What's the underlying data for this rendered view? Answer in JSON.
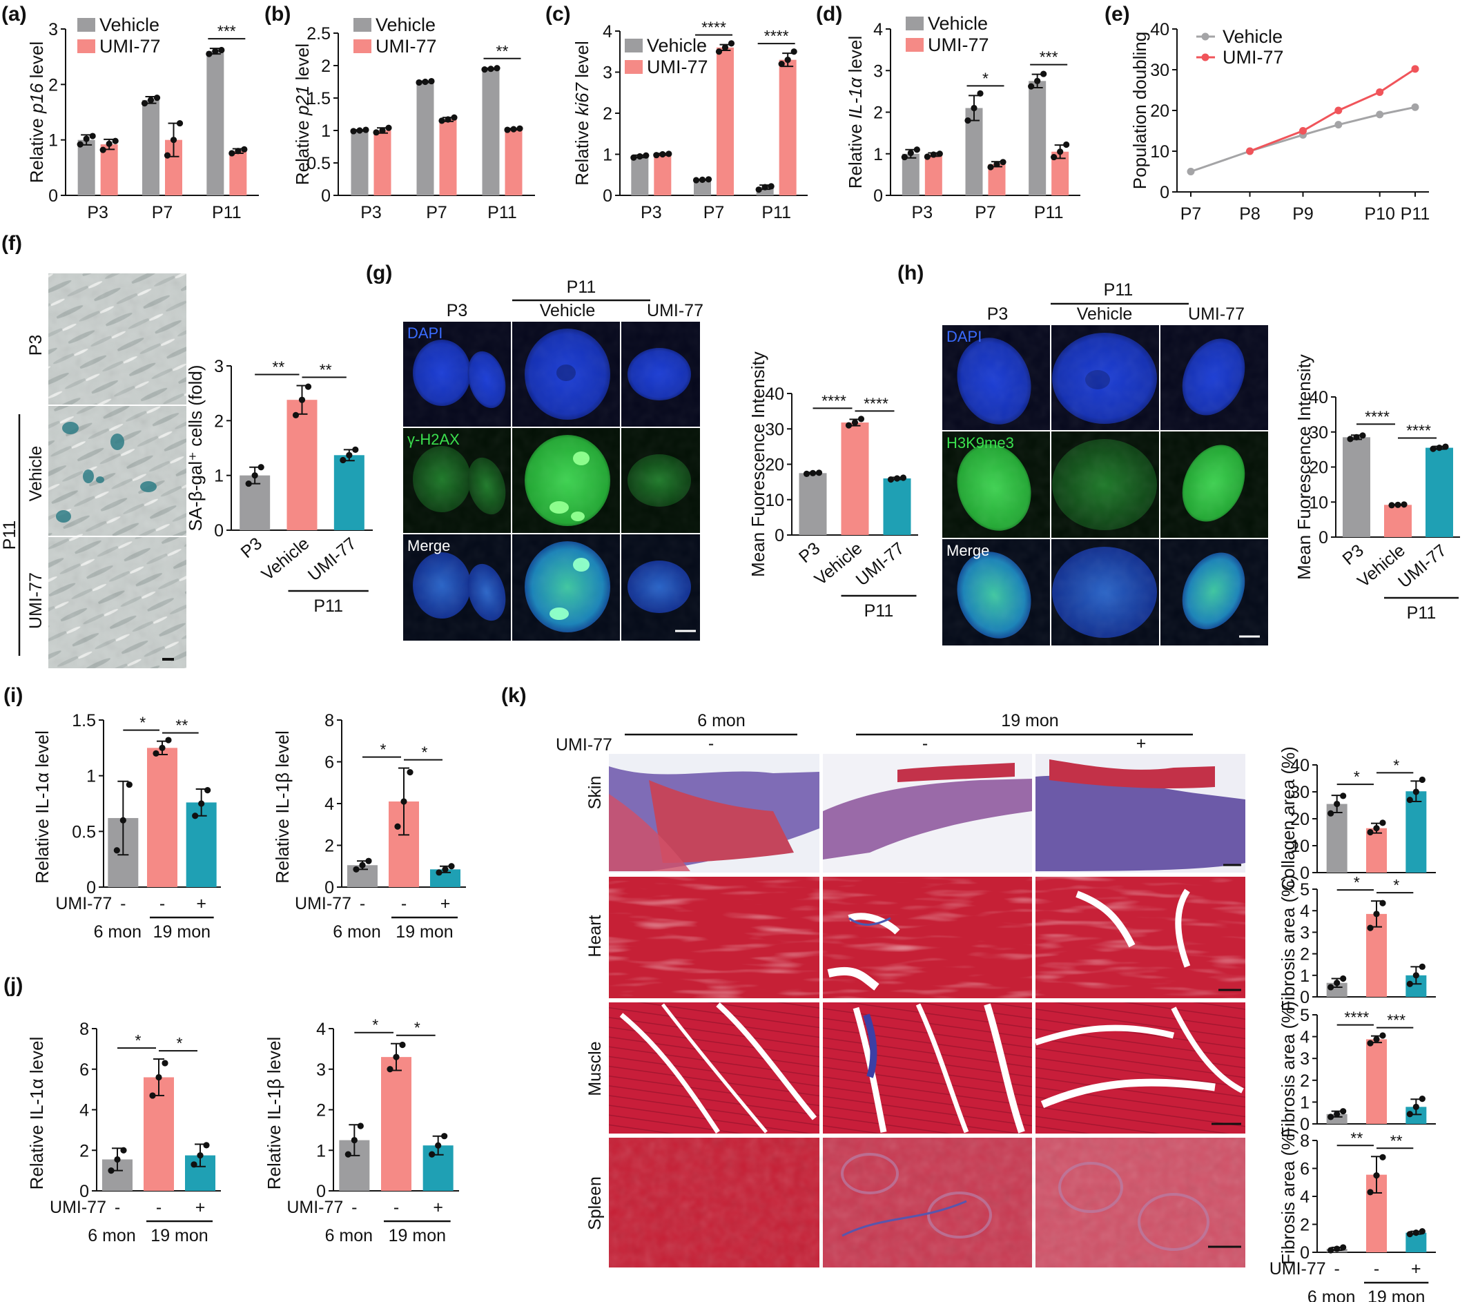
{
  "colors": {
    "vehicle": "#9d9d9f",
    "umi": "#f58a86",
    "teal": "#1fa0b4",
    "grey": "#9d9d9f",
    "dapi": "#1433b8",
    "green": "#2ed043",
    "merge": "#0fa0a0",
    "line_umi": "#f0545a",
    "line_veh": "#a4a4a6"
  },
  "legend": {
    "vehicle": "Vehicle",
    "umi": "UMI-77"
  },
  "panels": {
    "a": "(a)",
    "b": "(b)",
    "c": "(c)",
    "d": "(d)",
    "e": "(e)",
    "f": "(f)",
    "g": "(g)",
    "h": "(h)",
    "i": "(i)",
    "j": "(j)",
    "k": "(k)"
  },
  "chart_data": [
    {
      "id": "a",
      "type": "bar",
      "ylabel_prefix": "Relative ",
      "ylabel_gene": "p16",
      "ylabel_suffix": " level",
      "categories": [
        "P3",
        "P7",
        "P11"
      ],
      "ylim": [
        0,
        3
      ],
      "yticks": [
        0,
        1,
        2,
        3
      ],
      "ytick_labels": [
        "0",
        "1",
        "2",
        "3"
      ],
      "series": [
        {
          "name": "Vehicle",
          "values": [
            1.0,
            1.72,
            2.6
          ],
          "points": [
            [
              0.92,
              1.02,
              1.07
            ],
            [
              1.66,
              1.72,
              1.76
            ],
            [
              2.55,
              2.6,
              2.62
            ]
          ],
          "err": [
            0.09,
            0.06,
            0.05
          ]
        },
        {
          "name": "UMI-77",
          "values": [
            0.92,
            1.0,
            0.8
          ],
          "points": [
            [
              0.82,
              0.93,
              0.98
            ],
            [
              0.72,
              1.0,
              1.3
            ],
            [
              0.76,
              0.8,
              0.83
            ]
          ],
          "err": [
            0.09,
            0.3,
            0.04
          ]
        }
      ],
      "sig": [
        {
          "cat": 2,
          "text": "***"
        }
      ]
    },
    {
      "id": "b",
      "type": "bar",
      "ylabel_prefix": "Relative ",
      "ylabel_gene": "p21",
      "ylabel_suffix": " level",
      "categories": [
        "P3",
        "P7",
        "P11"
      ],
      "ylim": [
        0,
        2.5
      ],
      "yticks": [
        0,
        0.5,
        1,
        1.5,
        2,
        2.5
      ],
      "ytick_labels": [
        "0",
        "0.5",
        "1",
        "1.5",
        "2",
        "2.5"
      ],
      "series": [
        {
          "name": "Vehicle",
          "values": [
            1.0,
            1.75,
            1.95
          ],
          "points": [
            [
              0.99,
              1.0,
              1.01
            ],
            [
              1.74,
              1.75,
              1.76
            ],
            [
              1.94,
              1.95,
              1.96
            ]
          ],
          "err": [
            0.01,
            0.01,
            0.01
          ]
        },
        {
          "name": "UMI-77",
          "values": [
            1.0,
            1.17,
            1.02
          ],
          "points": [
            [
              0.97,
              1.0,
              1.04
            ],
            [
              1.15,
              1.17,
              1.2
            ],
            [
              1.01,
              1.02,
              1.03
            ]
          ],
          "err": [
            0.04,
            0.03,
            0.01
          ]
        }
      ],
      "sig": [
        {
          "cat": 2,
          "text": "**"
        }
      ]
    },
    {
      "id": "c",
      "type": "bar",
      "ylabel_prefix": "Relative ",
      "ylabel_gene": "ki67",
      "ylabel_suffix": " level",
      "categories": [
        "P3",
        "P7",
        "P11"
      ],
      "ylim": [
        0,
        4
      ],
      "yticks": [
        0,
        1,
        2,
        3,
        4
      ],
      "ytick_labels": [
        "0",
        "1",
        "2",
        "3",
        "4"
      ],
      "series": [
        {
          "name": "Vehicle",
          "values": [
            0.95,
            0.38,
            0.2
          ],
          "points": [
            [
              0.92,
              0.95,
              0.97
            ],
            [
              0.37,
              0.38,
              0.39
            ],
            [
              0.14,
              0.2,
              0.22
            ]
          ],
          "err": [
            0.03,
            0.01,
            0.05
          ]
        },
        {
          "name": "UMI-77",
          "values": [
            1.0,
            3.6,
            3.3
          ],
          "points": [
            [
              0.98,
              1.0,
              1.01
            ],
            [
              3.5,
              3.6,
              3.7
            ],
            [
              3.2,
              3.3,
              3.5
            ]
          ],
          "err": [
            0.02,
            0.07,
            0.16
          ]
        }
      ],
      "sig": [
        {
          "cat": 1,
          "text": "****"
        },
        {
          "cat": 2,
          "text": "****"
        }
      ]
    },
    {
      "id": "d",
      "type": "bar",
      "ylabel_prefix": "Relative ",
      "ylabel_gene": "IL-1α",
      "ylabel_suffix": " level",
      "categories": [
        "P3",
        "P7",
        "P11"
      ],
      "ylim": [
        0,
        4
      ],
      "yticks": [
        0,
        1,
        2,
        3,
        4
      ],
      "ytick_labels": [
        "0",
        "1",
        "2",
        "3",
        "4"
      ],
      "series": [
        {
          "name": "Vehicle",
          "values": [
            1.0,
            2.1,
            2.75
          ],
          "points": [
            [
              0.92,
              1.02,
              1.1
            ],
            [
              1.8,
              2.1,
              2.45
            ],
            [
              2.62,
              2.75,
              2.92
            ]
          ],
          "err": [
            0.1,
            0.3,
            0.16
          ]
        },
        {
          "name": "UMI-77",
          "values": [
            0.98,
            0.75,
            1.05
          ],
          "points": [
            [
              0.93,
              0.98,
              1.0
            ],
            [
              0.68,
              0.75,
              0.8
            ],
            [
              0.92,
              1.05,
              1.22
            ]
          ],
          "err": [
            0.04,
            0.06,
            0.16
          ]
        }
      ],
      "sig": [
        {
          "cat": 1,
          "text": "*"
        },
        {
          "cat": 2,
          "text": "***"
        }
      ]
    },
    {
      "id": "e",
      "type": "line",
      "ylabel": "Population doubling",
      "categories": [
        "P7",
        "P8",
        "P9",
        "P10",
        "P11"
      ],
      "ylim": [
        0,
        40
      ],
      "yticks": [
        0,
        10,
        20,
        30,
        40
      ],
      "ytick_labels": [
        "0",
        "10",
        "20",
        "30",
        "40"
      ],
      "series": [
        {
          "name": "Vehicle",
          "x": [
            0,
            1,
            1.9,
            2.5,
            3.2,
            3.8
          ],
          "values": [
            5,
            10,
            14,
            16.5,
            19,
            20.8
          ]
        },
        {
          "name": "UMI-77",
          "x": [
            1,
            1.9,
            2.5,
            3.2,
            3.8
          ],
          "values": [
            10,
            15,
            20,
            24.5,
            30.2
          ]
        }
      ],
      "tick_positions": [
        0,
        1,
        1.9,
        3.2,
        3.8
      ]
    },
    {
      "id": "f",
      "type": "bar",
      "ylabel": "SA-β-gal⁺ cells (fold)",
      "categories": [
        "P3",
        "Vehicle",
        "UMI-77"
      ],
      "group_label": "P11",
      "ylim": [
        0,
        3
      ],
      "yticks": [
        0,
        1,
        2,
        3
      ],
      "ytick_labels": [
        "0",
        "1",
        "2",
        "3"
      ],
      "values": [
        1.0,
        2.38,
        1.37
      ],
      "points": [
        [
          0.85,
          1.0,
          1.15
        ],
        [
          2.1,
          2.38,
          2.62
        ],
        [
          1.28,
          1.37,
          1.47
        ]
      ],
      "err": [
        0.15,
        0.26,
        0.1
      ],
      "sig": [
        {
          "from": 0,
          "to": 1,
          "text": "**"
        },
        {
          "from": 1,
          "to": 2,
          "text": "**"
        }
      ]
    },
    {
      "id": "g",
      "type": "bar",
      "ylabel": "Mean Fuorescence Intensity",
      "categories": [
        "P3",
        "Vehicle",
        "UMI-77"
      ],
      "group_label": "P11",
      "ylim": [
        0,
        40
      ],
      "yticks": [
        0,
        10,
        20,
        30,
        40
      ],
      "ytick_labels": [
        "0",
        "10",
        "20",
        "30",
        "40"
      ],
      "values": [
        17.5,
        31.8,
        16
      ],
      "points": [
        [
          17.3,
          17.5,
          17.6
        ],
        [
          31,
          31.8,
          32.8
        ],
        [
          15.7,
          16,
          16.2
        ]
      ],
      "err": [
        0.2,
        0.9,
        0.3
      ],
      "sig": [
        {
          "from": 0,
          "to": 1,
          "text": "****"
        },
        {
          "from": 1,
          "to": 2,
          "text": "****"
        }
      ]
    },
    {
      "id": "h",
      "type": "bar",
      "ylabel": "Mean Fuorescence Intensity",
      "categories": [
        "P3",
        "Vehicle",
        "UMI-77"
      ],
      "group_label": "P11",
      "ylim": [
        0,
        40
      ],
      "yticks": [
        0,
        10,
        20,
        30,
        40
      ],
      "ytick_labels": [
        "0",
        "10",
        "20",
        "30",
        "40"
      ],
      "values": [
        28.5,
        9.2,
        25.5
      ],
      "points": [
        [
          28,
          28.5,
          29
        ],
        [
          9.1,
          9.2,
          9.3
        ],
        [
          25.2,
          25.5,
          25.8
        ]
      ],
      "err": [
        0.6,
        0.1,
        0.4
      ],
      "sig": [
        {
          "from": 0,
          "to": 1,
          "text": "****"
        },
        {
          "from": 1,
          "to": 2,
          "text": "****"
        }
      ]
    },
    {
      "id": "i1",
      "type": "bar",
      "ylabel": "Relative IL-1α level",
      "categories": [
        "-",
        "-",
        "+"
      ],
      "treat_label": "UMI-77",
      "age_labels": [
        "6 mon",
        "19 mon"
      ],
      "ylim": [
        0,
        1.5
      ],
      "yticks": [
        0,
        0.5,
        1,
        1.5
      ],
      "ytick_labels": [
        "0",
        "0.5",
        "1",
        "1.5"
      ],
      "values": [
        0.62,
        1.25,
        0.76
      ],
      "points": [
        [
          0.33,
          0.6,
          0.92
        ],
        [
          1.2,
          1.25,
          1.32
        ],
        [
          0.64,
          0.75,
          0.87
        ]
      ],
      "err": [
        0.33,
        0.06,
        0.12
      ],
      "sig": [
        {
          "from": 0,
          "to": 1,
          "text": "*"
        },
        {
          "from": 1,
          "to": 2,
          "text": "**"
        }
      ]
    },
    {
      "id": "i2",
      "type": "bar",
      "ylabel": "Relative IL-1β level",
      "categories": [
        "-",
        "-",
        "+"
      ],
      "treat_label": "UMI-77",
      "age_labels": [
        "6 mon",
        "19 mon"
      ],
      "ylim": [
        0,
        8
      ],
      "yticks": [
        0,
        2,
        4,
        6,
        8
      ],
      "ytick_labels": [
        "0",
        "2",
        "4",
        "6",
        "8"
      ],
      "values": [
        1.05,
        4.1,
        0.85
      ],
      "points": [
        [
          0.85,
          1.05,
          1.25
        ],
        [
          2.9,
          4.1,
          5.5
        ],
        [
          0.7,
          0.85,
          1.0
        ]
      ],
      "err": [
        0.2,
        1.6,
        0.15
      ],
      "sig": [
        {
          "from": 0,
          "to": 1,
          "text": "*"
        },
        {
          "from": 1,
          "to": 2,
          "text": "*"
        }
      ]
    },
    {
      "id": "j1",
      "type": "bar",
      "ylabel": "Relative IL-1α level",
      "categories": [
        "-",
        "-",
        "+"
      ],
      "treat_label": "UMI-77",
      "age_labels": [
        "6 mon",
        "19 mon"
      ],
      "ylim": [
        0,
        8
      ],
      "yticks": [
        0,
        2,
        4,
        6,
        8
      ],
      "ytick_labels": [
        "0",
        "2",
        "4",
        "6",
        "8"
      ],
      "values": [
        1.55,
        5.6,
        1.75
      ],
      "points": [
        [
          1.0,
          1.55,
          2.0
        ],
        [
          4.7,
          5.6,
          6.3
        ],
        [
          1.3,
          1.75,
          2.25
        ]
      ],
      "err": [
        0.55,
        0.9,
        0.55
      ],
      "sig": [
        {
          "from": 0,
          "to": 1,
          "text": "*"
        },
        {
          "from": 1,
          "to": 2,
          "text": "*"
        }
      ]
    },
    {
      "id": "j2",
      "type": "bar",
      "ylabel": "Relative IL-1β level",
      "categories": [
        "-",
        "-",
        "+"
      ],
      "treat_label": "UMI-77",
      "age_labels": [
        "6 mon",
        "19 mon"
      ],
      "ylim": [
        0,
        4
      ],
      "yticks": [
        0,
        1,
        2,
        3,
        4
      ],
      "ytick_labels": [
        "0",
        "1",
        "2",
        "3",
        "4"
      ],
      "values": [
        1.25,
        3.3,
        1.12
      ],
      "points": [
        [
          0.9,
          1.25,
          1.6
        ],
        [
          3.0,
          3.3,
          3.6
        ],
        [
          0.9,
          1.12,
          1.35
        ]
      ],
      "err": [
        0.38,
        0.33,
        0.23
      ],
      "sig": [
        {
          "from": 0,
          "to": 1,
          "text": "*"
        },
        {
          "from": 1,
          "to": 2,
          "text": "*"
        }
      ]
    },
    {
      "id": "k1",
      "type": "bar",
      "ylabel": "Collagen area (%)",
      "categories": [
        "-",
        "-",
        "+"
      ],
      "ylim": [
        0,
        40
      ],
      "yticks": [
        0,
        10,
        20,
        30,
        40
      ],
      "ytick_labels": [
        "0",
        "10",
        "20",
        "30",
        "40"
      ],
      "values": [
        25.5,
        16.5,
        30.2
      ],
      "points": [
        [
          22,
          25.5,
          28.5
        ],
        [
          15,
          16.5,
          18.5
        ],
        [
          27,
          30,
          34.5
        ]
      ],
      "err": [
        3.2,
        1.8,
        3.8
      ],
      "sig": [
        {
          "from": 0,
          "to": 1,
          "text": "*"
        },
        {
          "from": 1,
          "to": 2,
          "text": "*"
        }
      ]
    },
    {
      "id": "k2",
      "type": "bar",
      "ylabel": "Fibrosis area (%)",
      "categories": [
        "-",
        "-",
        "+"
      ],
      "ylim": [
        0,
        5
      ],
      "yticks": [
        0,
        1,
        2,
        3,
        4,
        5
      ],
      "ytick_labels": [
        "0",
        "1",
        "2",
        "3",
        "4",
        "5"
      ],
      "values": [
        0.65,
        3.85,
        1.0
      ],
      "points": [
        [
          0.45,
          0.65,
          0.85
        ],
        [
          3.2,
          3.85,
          4.35
        ],
        [
          0.6,
          1.0,
          1.4
        ]
      ],
      "err": [
        0.2,
        0.6,
        0.4
      ],
      "sig": [
        {
          "from": 0,
          "to": 1,
          "text": "*"
        },
        {
          "from": 1,
          "to": 2,
          "text": "*"
        }
      ]
    },
    {
      "id": "k3",
      "type": "bar",
      "ylabel": "Fibrosis area (%)",
      "categories": [
        "-",
        "-",
        "+"
      ],
      "ylim": [
        0,
        5
      ],
      "yticks": [
        0,
        1,
        2,
        3,
        4,
        5
      ],
      "ytick_labels": [
        "0",
        "1",
        "2",
        "3",
        "4",
        "5"
      ],
      "values": [
        0.45,
        3.88,
        0.78
      ],
      "points": [
        [
          0.32,
          0.45,
          0.58
        ],
        [
          3.7,
          3.88,
          4.05
        ],
        [
          0.45,
          0.78,
          1.15
        ]
      ],
      "err": [
        0.13,
        0.15,
        0.35
      ],
      "sig": [
        {
          "from": 0,
          "to": 1,
          "text": "****"
        },
        {
          "from": 1,
          "to": 2,
          "text": "***"
        }
      ]
    },
    {
      "id": "k4",
      "type": "bar",
      "ylabel": "Fibrosis area (%)",
      "categories": [
        "-",
        "-",
        "+"
      ],
      "treat_label": "UMI-77",
      "age_labels": [
        "6 mon",
        "19 mon"
      ],
      "ylim": [
        0,
        8
      ],
      "yticks": [
        0,
        2,
        4,
        6,
        8
      ],
      "ytick_labels": [
        "0",
        "2",
        "4",
        "6",
        "8"
      ],
      "values": [
        0.25,
        5.55,
        1.4
      ],
      "points": [
        [
          0.15,
          0.25,
          0.35
        ],
        [
          4.3,
          5.5,
          6.8
        ],
        [
          1.3,
          1.4,
          1.5
        ]
      ],
      "err": [
        0.1,
        1.3,
        0.1
      ],
      "sig": [
        {
          "from": 0,
          "to": 1,
          "text": "**"
        },
        {
          "from": 1,
          "to": 2,
          "text": "**"
        }
      ]
    }
  ],
  "f_images": {
    "row_labels": [
      "P3",
      "Vehicle",
      "UMI-77"
    ],
    "group": "P11"
  },
  "g_images": {
    "col_p3": "P3",
    "col_group": "P11",
    "col_vehicle": "Vehicle",
    "col_umi": "UMI-77",
    "rows": [
      "DAPI",
      "γ-H2AX",
      "Merge"
    ]
  },
  "h_images": {
    "col_p3": "P3",
    "col_group": "P11",
    "col_vehicle": "Vehicle",
    "col_umi": "UMI-77",
    "rows": [
      "DAPI",
      "H3K9me3",
      "Merge"
    ]
  },
  "k_images": {
    "age_6": "6 mon",
    "age_19": "19 mon",
    "treat_label": "UMI-77",
    "treat_signs": [
      "-",
      "-",
      "+"
    ],
    "tissues": [
      "Skin",
      "Heart",
      "Muscle",
      "Spleen"
    ]
  }
}
